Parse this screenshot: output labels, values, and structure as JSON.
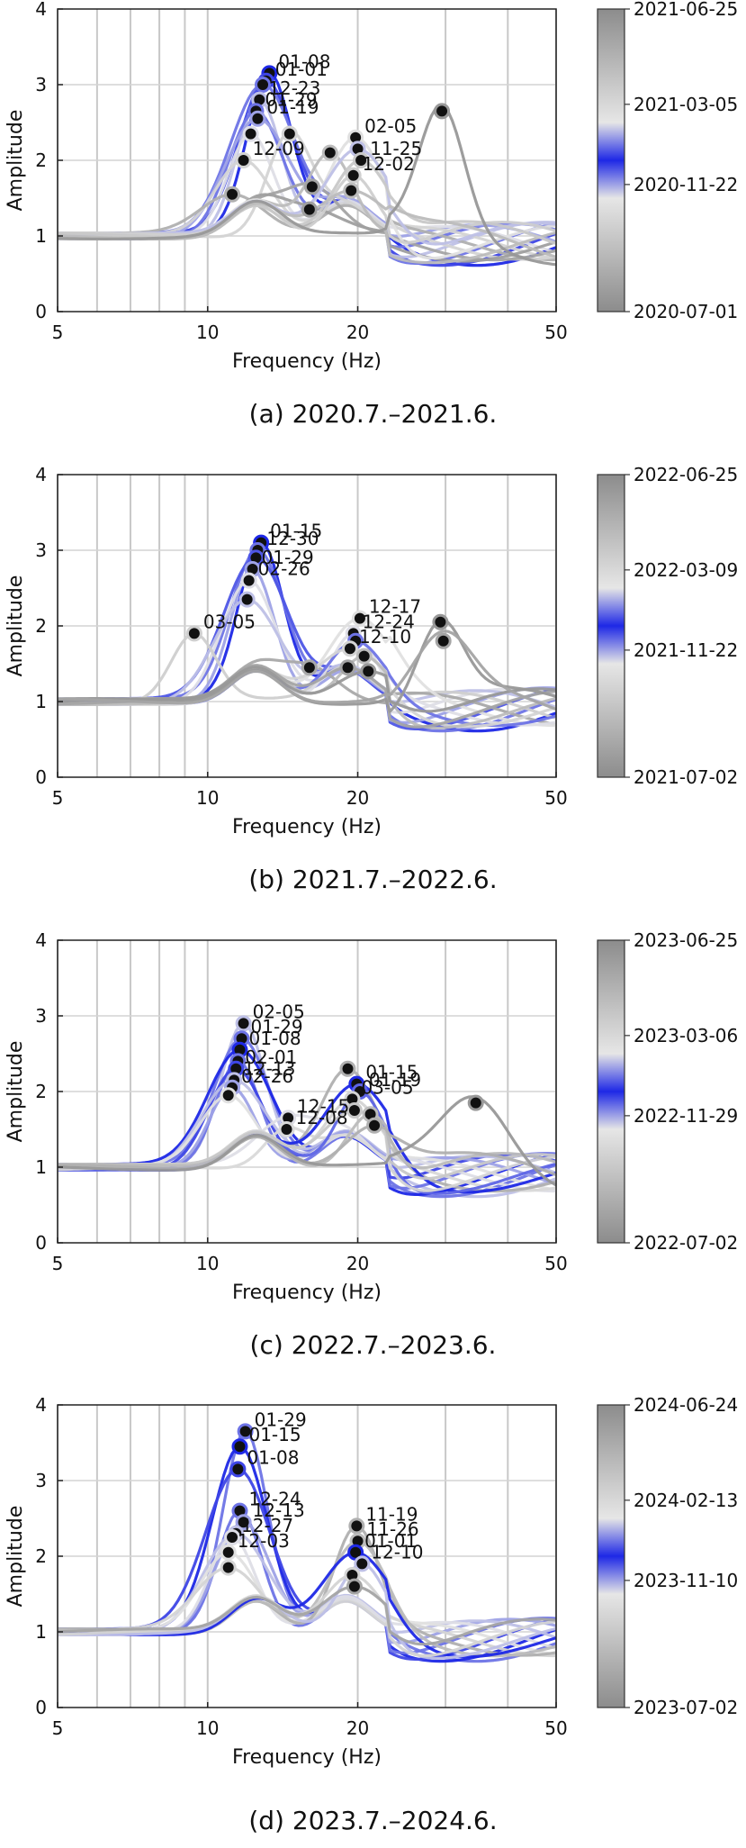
{
  "chart_data": [
    {
      "type": "line",
      "caption": "(a) 2020.7.–2021.6.",
      "xlabel": "Frequency (Hz)",
      "ylabel": "Amplitude",
      "xscale": "log",
      "xlim": [
        5,
        50
      ],
      "ylim": [
        0,
        4
      ],
      "xticks": [
        "5",
        "10",
        "20",
        "50"
      ],
      "yticks": [
        "0",
        "1",
        "2",
        "3",
        "4"
      ],
      "grid": true,
      "colorbar_labels": [
        "2021-06-25",
        "2021-03-05",
        "2020-11-22",
        "2020-07-01"
      ],
      "colors": {
        "blue": "#1e28e6",
        "gray": "#8c8c8c",
        "light": "#e6e6e6"
      },
      "peaks": [
        {
          "f": 13.3,
          "a": 3.15,
          "label": "01-08",
          "c": 0.5
        },
        {
          "f": 13.1,
          "a": 3.05,
          "label": "01-01",
          "c": 0.52
        },
        {
          "f": 12.9,
          "a": 3.0,
          "label": "",
          "c": 0.55
        },
        {
          "f": 12.7,
          "a": 2.8,
          "label": "12-23",
          "c": 0.6
        },
        {
          "f": 12.5,
          "a": 2.65,
          "label": "01-29",
          "c": 0.45
        },
        {
          "f": 12.6,
          "a": 2.55,
          "label": "01-19",
          "c": 0.58
        },
        {
          "f": 12.2,
          "a": 2.35,
          "label": "",
          "c": 0.62
        },
        {
          "f": 11.8,
          "a": 2.0,
          "label": "12-09",
          "c": 0.7
        },
        {
          "f": 11.2,
          "a": 1.55,
          "label": "",
          "c": 0.85
        },
        {
          "f": 14.6,
          "a": 2.35,
          "label": "",
          "c": 0.3
        },
        {
          "f": 16.2,
          "a": 1.65,
          "label": "",
          "c": 0.9
        },
        {
          "f": 16.0,
          "a": 1.35,
          "label": "",
          "c": 0.92
        },
        {
          "f": 17.6,
          "a": 2.1,
          "label": "",
          "c": 0.2
        },
        {
          "f": 19.8,
          "a": 2.3,
          "label": "02-05",
          "c": 0.35
        },
        {
          "f": 20.0,
          "a": 2.15,
          "label": "",
          "c": 0.4
        },
        {
          "f": 19.6,
          "a": 1.8,
          "label": "12-02",
          "c": 0.72
        },
        {
          "f": 20.3,
          "a": 2.0,
          "label": "11-25",
          "c": 0.75
        },
        {
          "f": 19.4,
          "a": 1.6,
          "label": "",
          "c": 0.8
        },
        {
          "f": 29.5,
          "a": 2.65,
          "label": "",
          "c": 0.05
        }
      ]
    },
    {
      "type": "line",
      "caption": "(b) 2021.7.–2022.6.",
      "xlabel": "Frequency (Hz)",
      "ylabel": "Amplitude",
      "xscale": "log",
      "xlim": [
        5,
        50
      ],
      "ylim": [
        0,
        4
      ],
      "xticks": [
        "5",
        "10",
        "20",
        "50"
      ],
      "yticks": [
        "0",
        "1",
        "2",
        "3",
        "4"
      ],
      "grid": true,
      "colorbar_labels": [
        "2022-06-25",
        "2022-03-09",
        "2021-11-22",
        "2021-07-02"
      ],
      "colors": {
        "blue": "#1e28e6",
        "gray": "#8c8c8c",
        "light": "#e6e6e6"
      },
      "peaks": [
        {
          "f": 12.8,
          "a": 3.1,
          "label": "01-15",
          "c": 0.5
        },
        {
          "f": 12.6,
          "a": 3.0,
          "label": "12-30",
          "c": 0.55
        },
        {
          "f": 12.5,
          "a": 2.9,
          "label": "",
          "c": 0.47
        },
        {
          "f": 12.3,
          "a": 2.75,
          "label": "01-29",
          "c": 0.42
        },
        {
          "f": 12.1,
          "a": 2.6,
          "label": "02-26",
          "c": 0.38
        },
        {
          "f": 12.0,
          "a": 2.35,
          "label": "",
          "c": 0.6
        },
        {
          "f": 9.4,
          "a": 1.9,
          "label": "03-05",
          "c": 0.28
        },
        {
          "f": 16.0,
          "a": 1.45,
          "label": "",
          "c": 0.88
        },
        {
          "f": 20.2,
          "a": 2.1,
          "label": "12-17",
          "c": 0.65
        },
        {
          "f": 19.6,
          "a": 1.9,
          "label": "12-24",
          "c": 0.62
        },
        {
          "f": 19.8,
          "a": 1.8,
          "label": "",
          "c": 0.55
        },
        {
          "f": 19.3,
          "a": 1.7,
          "label": "12-10",
          "c": 0.7
        },
        {
          "f": 20.6,
          "a": 1.6,
          "label": "",
          "c": 0.8
        },
        {
          "f": 19.1,
          "a": 1.45,
          "label": "",
          "c": 0.9
        },
        {
          "f": 21.0,
          "a": 1.4,
          "label": "",
          "c": 0.95
        },
        {
          "f": 29.3,
          "a": 2.05,
          "label": "",
          "c": 0.05
        },
        {
          "f": 29.7,
          "a": 1.8,
          "label": "",
          "c": 0.1
        }
      ]
    },
    {
      "type": "line",
      "caption": "(c) 2022.7.–2023.6.",
      "xlabel": "Frequency (Hz)",
      "ylabel": "Amplitude",
      "xscale": "log",
      "xlim": [
        5,
        50
      ],
      "ylim": [
        0,
        4
      ],
      "xticks": [
        "5",
        "10",
        "20",
        "50"
      ],
      "yticks": [
        "0",
        "1",
        "2",
        "3",
        "4"
      ],
      "grid": true,
      "colorbar_labels": [
        "2023-06-25",
        "2023-03-06",
        "2022-11-29",
        "2022-07-02"
      ],
      "colors": {
        "blue": "#1e28e6",
        "gray": "#8c8c8c",
        "light": "#e6e6e6"
      },
      "peaks": [
        {
          "f": 11.8,
          "a": 2.9,
          "label": "02-05",
          "c": 0.4
        },
        {
          "f": 11.7,
          "a": 2.7,
          "label": "01-29",
          "c": 0.45
        },
        {
          "f": 11.6,
          "a": 2.55,
          "label": "01-08",
          "c": 0.5
        },
        {
          "f": 11.5,
          "a": 2.4,
          "label": "",
          "c": 0.55
        },
        {
          "f": 11.4,
          "a": 2.3,
          "label": "02-01",
          "c": 0.48
        },
        {
          "f": 11.3,
          "a": 2.15,
          "label": "12-13",
          "c": 0.6
        },
        {
          "f": 11.2,
          "a": 2.05,
          "label": "02-26",
          "c": 0.42
        },
        {
          "f": 11.0,
          "a": 1.95,
          "label": "",
          "c": 0.65
        },
        {
          "f": 14.5,
          "a": 1.65,
          "label": "12-15",
          "c": 0.62
        },
        {
          "f": 14.4,
          "a": 1.5,
          "label": "12-08",
          "c": 0.68
        },
        {
          "f": 19.1,
          "a": 2.3,
          "label": "",
          "c": 0.15
        },
        {
          "f": 19.9,
          "a": 2.1,
          "label": "01-15",
          "c": 0.5
        },
        {
          "f": 20.2,
          "a": 2.0,
          "label": "01-19",
          "c": 0.46
        },
        {
          "f": 19.5,
          "a": 1.9,
          "label": "03-05",
          "c": 0.3
        },
        {
          "f": 19.7,
          "a": 1.75,
          "label": "",
          "c": 0.75
        },
        {
          "f": 21.2,
          "a": 1.7,
          "label": "",
          "c": 0.8
        },
        {
          "f": 21.6,
          "a": 1.55,
          "label": "",
          "c": 0.85
        },
        {
          "f": 34.5,
          "a": 1.85,
          "label": "",
          "c": 0.05
        }
      ]
    },
    {
      "type": "line",
      "caption": "(d) 2023.7.–2024.6.",
      "xlabel": "Frequency (Hz)",
      "ylabel": "Amplitude",
      "xscale": "log",
      "xlim": [
        5,
        50
      ],
      "ylim": [
        0,
        4
      ],
      "xticks": [
        "5",
        "10",
        "20",
        "50"
      ],
      "yticks": [
        "0",
        "1",
        "2",
        "3",
        "4"
      ],
      "grid": true,
      "colorbar_labels": [
        "2024-06-24",
        "2024-02-13",
        "2023-11-10",
        "2023-07-02"
      ],
      "colors": {
        "blue": "#1e28e6",
        "gray": "#8c8c8c",
        "light": "#e6e6e6"
      },
      "peaks": [
        {
          "f": 11.9,
          "a": 3.65,
          "label": "01-29",
          "c": 0.45
        },
        {
          "f": 11.6,
          "a": 3.45,
          "label": "01-15",
          "c": 0.5
        },
        {
          "f": 11.5,
          "a": 3.15,
          "label": "01-08",
          "c": 0.52
        },
        {
          "f": 11.6,
          "a": 2.6,
          "label": "12-24",
          "c": 0.55
        },
        {
          "f": 11.8,
          "a": 2.45,
          "label": "12-13",
          "c": 0.58
        },
        {
          "f": 11.4,
          "a": 2.3,
          "label": "",
          "c": 0.6
        },
        {
          "f": 11.2,
          "a": 2.25,
          "label": "12-27",
          "c": 0.62
        },
        {
          "f": 11.0,
          "a": 2.05,
          "label": "12-03",
          "c": 0.65
        },
        {
          "f": 11.0,
          "a": 1.85,
          "label": "",
          "c": 0.7
        },
        {
          "f": 19.9,
          "a": 2.4,
          "label": "11-19",
          "c": 0.85
        },
        {
          "f": 20.0,
          "a": 2.2,
          "label": "11-26",
          "c": 0.8
        },
        {
          "f": 19.8,
          "a": 2.05,
          "label": "01-01",
          "c": 0.5
        },
        {
          "f": 20.4,
          "a": 1.9,
          "label": "12-10",
          "c": 0.6
        },
        {
          "f": 19.5,
          "a": 1.75,
          "label": "",
          "c": 0.7
        },
        {
          "f": 19.7,
          "a": 1.6,
          "label": "",
          "c": 0.9
        }
      ]
    }
  ]
}
